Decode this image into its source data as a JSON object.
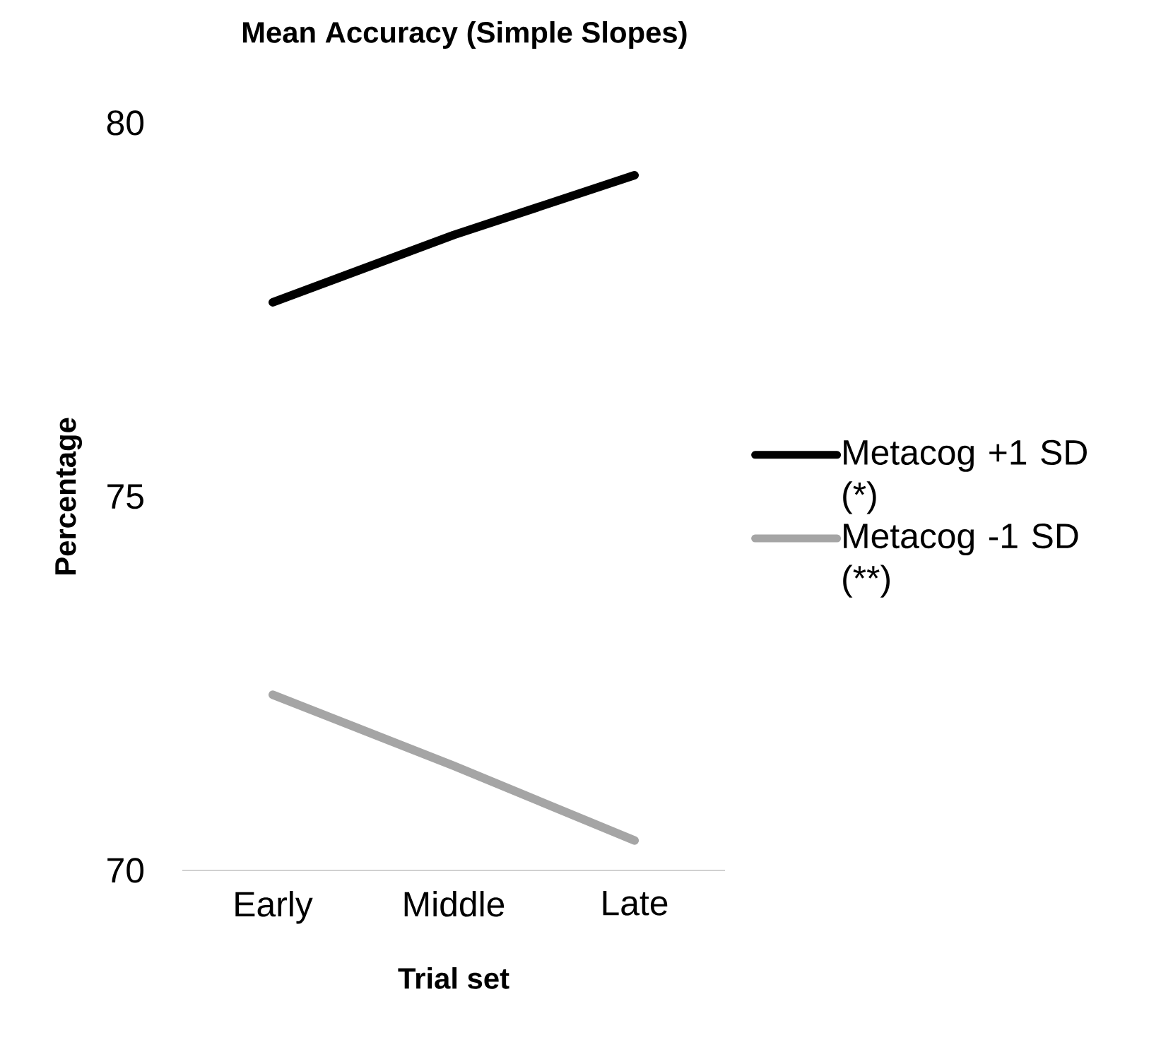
{
  "chart_data": {
    "type": "line",
    "title": "Mean Accuracy (Simple Slopes)",
    "xlabel": "Trial set",
    "ylabel": "Percentage",
    "categories": [
      "Early",
      "Middle",
      "Late"
    ],
    "series": [
      {
        "name": "Metacog +1 SD (*)",
        "color": "#000000",
        "values": [
          77.6,
          78.5,
          79.3
        ]
      },
      {
        "name": "Metacog -1 SD (**)",
        "color": "#a5a5a5",
        "values": [
          72.35,
          71.4,
          70.4
        ]
      }
    ],
    "ylim": [
      70,
      80
    ],
    "yticks": [
      70,
      75,
      80
    ],
    "grid": false,
    "legend": "right",
    "marker": "none",
    "line_style": "solid"
  }
}
